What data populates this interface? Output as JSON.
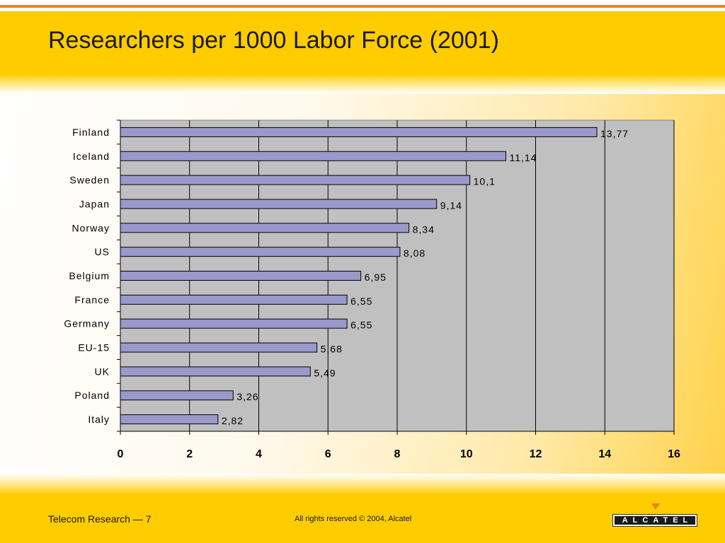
{
  "slide": {
    "title": "Researchers per 1000 Labor Force (2001)",
    "footer_left": "Telecom Research — 7",
    "footer_center": "All rights reserved © 2004, Alcatel",
    "logo_text": "ALCATEL"
  },
  "colors": {
    "header": "#ffcc00",
    "accent_line": "#f07f1e",
    "bar_fill": "#9999cc",
    "plot_bg": "#c0c0c0"
  },
  "chart_data": {
    "type": "bar",
    "orientation": "horizontal",
    "categories": [
      "Finland",
      "Iceland",
      "Sweden",
      "Japan",
      "Norway",
      "US",
      "Belgium",
      "France",
      "Germany",
      "EU-15",
      "UK",
      "Poland",
      "Italy"
    ],
    "values": [
      13.77,
      11.14,
      10.1,
      9.14,
      8.34,
      8.08,
      6.95,
      6.55,
      6.55,
      5.68,
      5.49,
      3.26,
      2.82
    ],
    "value_labels": [
      "13,77",
      "11,14",
      "10,1",
      "9,14",
      "8,34",
      "8,08",
      "6,95",
      "6,55",
      "6,55",
      "5,68",
      "5,49",
      "3,26",
      "2,82"
    ],
    "xlim": [
      0,
      16
    ],
    "xticks": [
      0,
      2,
      4,
      6,
      8,
      10,
      12,
      14,
      16
    ],
    "xtick_labels": [
      "0",
      "2",
      "4",
      "6",
      "8",
      "10",
      "12",
      "14",
      "16"
    ],
    "grid": true,
    "legend": "none"
  }
}
